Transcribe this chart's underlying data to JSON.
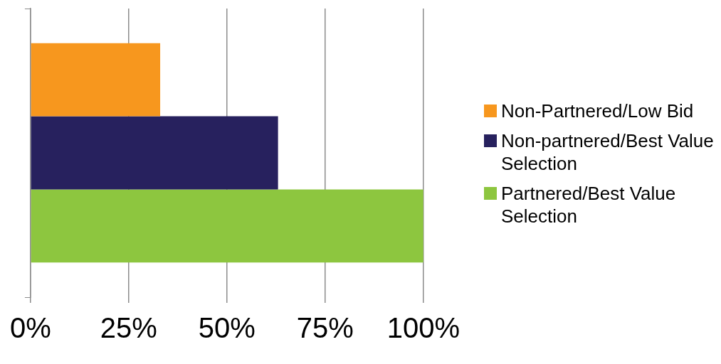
{
  "chart_data": {
    "type": "bar",
    "orientation": "horizontal",
    "categories": [
      null
    ],
    "series": [
      {
        "name": "Non-Partnered/Low Bid",
        "color": "#f7971e",
        "values": [
          33
        ]
      },
      {
        "name": "Non-partnered/Best Value Selection",
        "color": "#27215e",
        "values": [
          63
        ]
      },
      {
        "name": "Partnered/Best Value Selection",
        "color": "#8dc63f",
        "values": [
          100
        ]
      }
    ],
    "xlim": [
      0,
      100
    ],
    "xticks": [
      {
        "value": 0,
        "label": "0%"
      },
      {
        "value": 25,
        "label": "25%"
      },
      {
        "value": 50,
        "label": "50%"
      },
      {
        "value": 75,
        "label": "75%"
      },
      {
        "value": 100,
        "label": "100%"
      }
    ],
    "grid": "x",
    "legend": "right"
  }
}
